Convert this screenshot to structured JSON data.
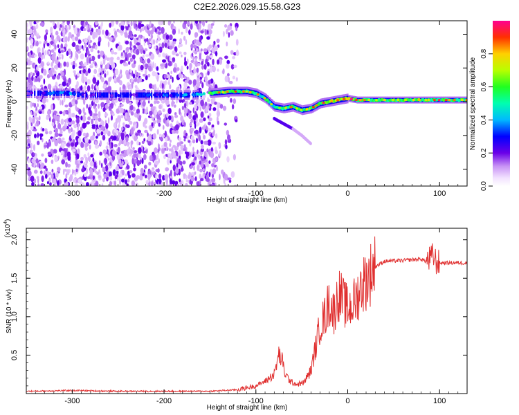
{
  "title": "C2E2.2026.029.15.58.G23",
  "colors": {
    "snr_line": "#e03030",
    "axis": "#000000",
    "background": "#ffffff"
  },
  "chart_data": [
    {
      "type": "heatmap",
      "xlabel": "Height of straight line (km)",
      "ylabel": "Frequency (Hz)",
      "xlim": [
        -350,
        130
      ],
      "ylim": [
        -50,
        48
      ],
      "x_ticks": [
        -300,
        -200,
        -100,
        0,
        100
      ],
      "y_ticks": [
        -40,
        -20,
        0,
        20,
        40
      ],
      "colorbar": {
        "label": "Normalized spectral amplitude",
        "range": [
          0,
          1
        ],
        "ticks": [
          0.0,
          0.2,
          0.4,
          0.6,
          0.8
        ],
        "tick_labels": [
          "0.0",
          "0.2",
          "0.4",
          "0.6",
          "0.8"
        ]
      },
      "noise_region_x": [
        -350,
        -145
      ],
      "signal_track": {
        "x": [
          -350,
          -300,
          -290,
          -250,
          -200,
          -170,
          -150,
          -130,
          -110,
          -100,
          -90,
          -80,
          -70,
          -60,
          -50,
          -40,
          -30,
          -20,
          -10,
          0,
          10,
          20,
          40,
          60,
          80,
          100,
          130
        ],
        "freq": [
          5,
          5,
          4,
          4,
          4,
          4,
          5,
          6,
          6,
          5,
          2,
          -3,
          -4,
          -3,
          -5,
          -4,
          -1,
          0,
          1,
          2,
          1,
          1,
          1,
          1,
          1,
          1,
          1
        ],
        "amplitude": [
          0.2,
          0.35,
          0.3,
          0.2,
          0.3,
          0.35,
          0.55,
          0.6,
          0.55,
          0.5,
          0.5,
          0.45,
          0.5,
          0.55,
          0.5,
          0.6,
          0.55,
          0.65,
          0.7,
          0.75,
          0.55,
          0.55,
          0.55,
          0.55,
          0.6,
          0.55,
          0.55
        ]
      },
      "secondary_track": {
        "x": [
          -80,
          -70,
          -60,
          -50,
          -40
        ],
        "freq": [
          -10,
          -13,
          -16,
          -20,
          -25
        ]
      }
    },
    {
      "type": "line",
      "xlabel": "Height of straight line (km)",
      "ylabel": "SNR (10 * v/v)",
      "y_multiplier": "(x10",
      "y_multiplier_exp": "4",
      "y_multiplier_close": ")",
      "xlim": [
        -350,
        130
      ],
      "ylim": [
        0,
        2.15
      ],
      "x_ticks": [
        -300,
        -200,
        -100,
        0,
        100
      ],
      "y_ticks": [
        0.5,
        1.0,
        1.5,
        2.0
      ],
      "y_tick_labels": [
        "0.5",
        "1.0",
        "1.5",
        "2.0"
      ],
      "series": [
        {
          "name": "SNR",
          "x": [
            -350,
            -300,
            -250,
            -200,
            -150,
            -120,
            -100,
            -90,
            -80,
            -75,
            -72,
            -68,
            -62,
            -55,
            -48,
            -40,
            -35,
            -30,
            -25,
            -20,
            -15,
            -10,
            -5,
            0,
            5,
            10,
            15,
            20,
            30,
            40,
            60,
            80,
            85,
            90,
            93,
            96,
            100,
            110,
            130
          ],
          "values": [
            0.03,
            0.04,
            0.03,
            0.03,
            0.03,
            0.05,
            0.1,
            0.16,
            0.25,
            0.5,
            0.45,
            0.25,
            0.15,
            0.12,
            0.14,
            0.3,
            0.6,
            0.9,
            1.0,
            1.2,
            1.05,
            1.3,
            1.2,
            1.1,
            1.15,
            1.25,
            1.4,
            1.48,
            1.65,
            1.72,
            1.73,
            1.75,
            1.72,
            1.75,
            1.8,
            1.72,
            1.7,
            1.7,
            1.7
          ]
        }
      ]
    }
  ]
}
